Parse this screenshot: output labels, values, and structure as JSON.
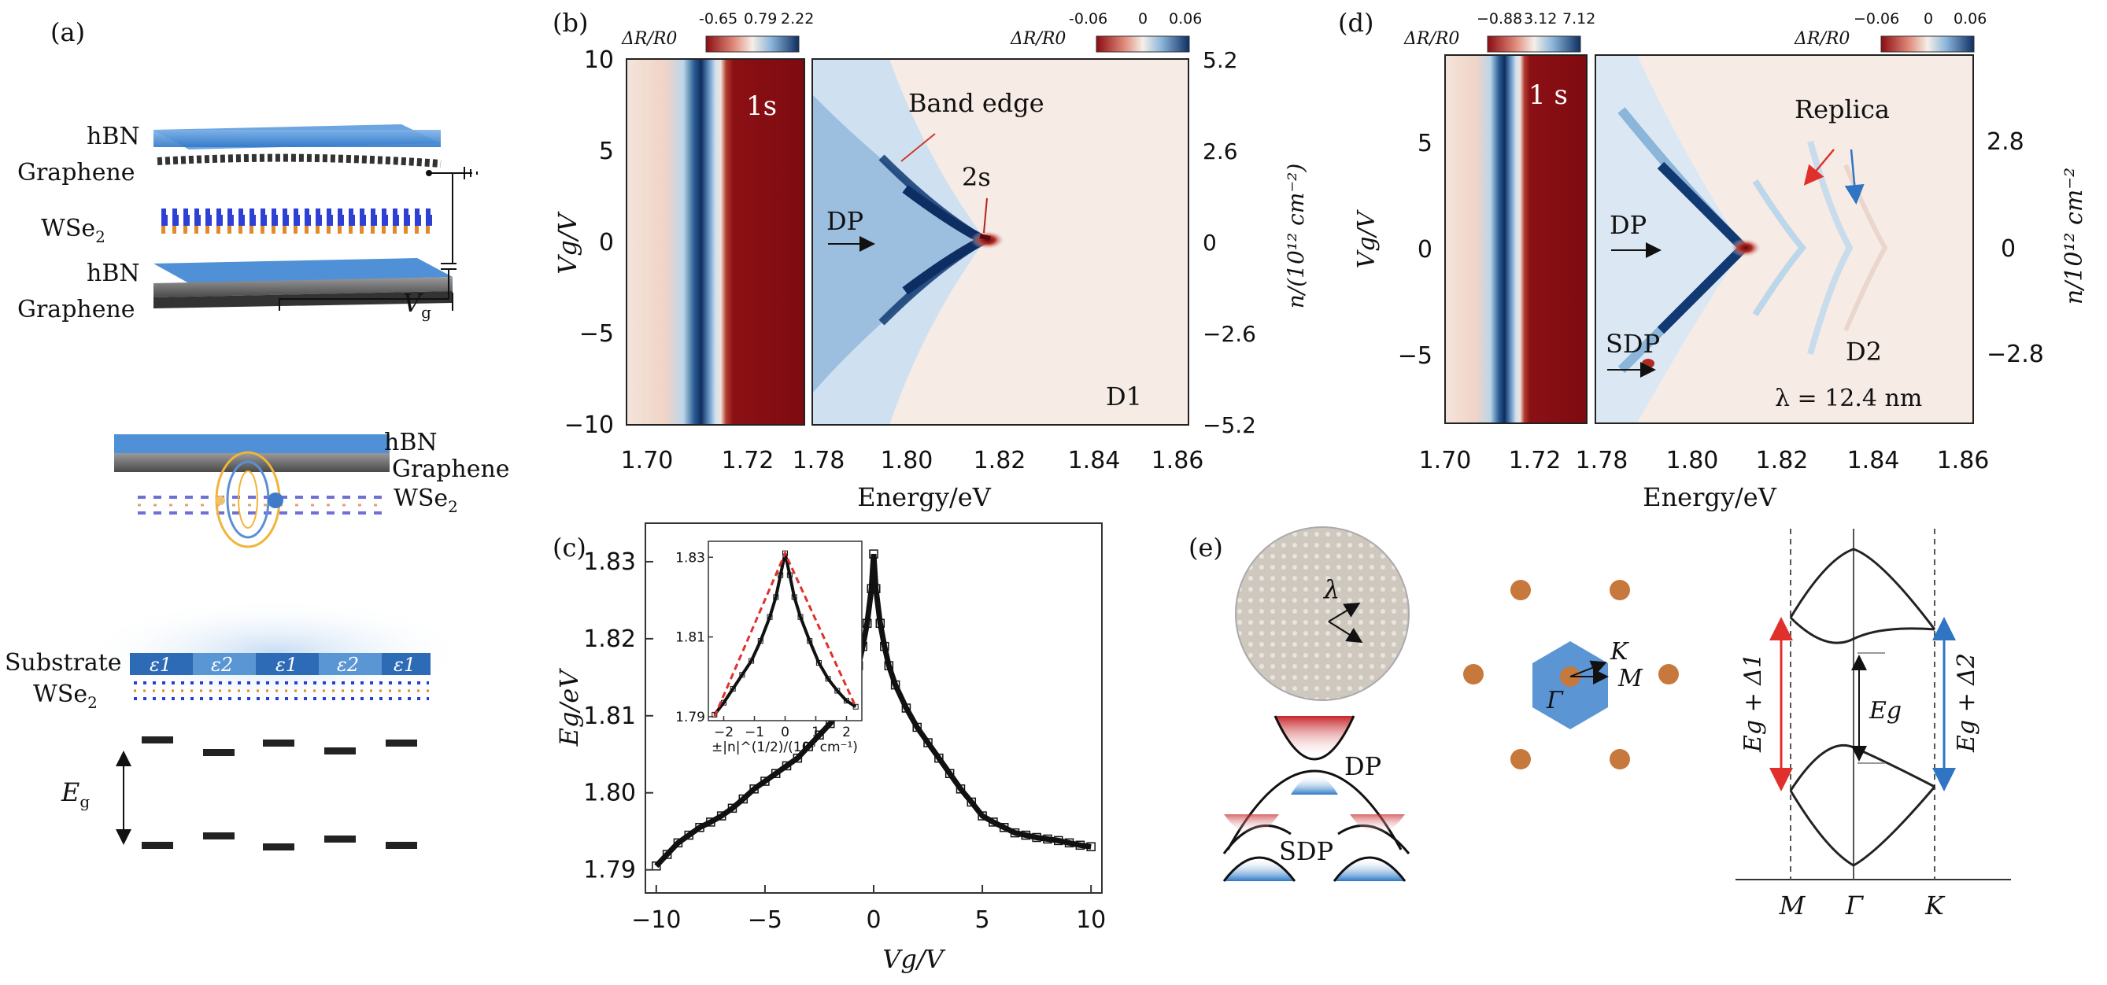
{
  "panel_labels": {
    "a": "(a)",
    "b": "(b)",
    "c": "(c)",
    "d": "(d)",
    "e": "(e)"
  },
  "panel_a": {
    "top": {
      "hbn": "hBN",
      "graphene": "Graphene",
      "wse2": "WSe",
      "hbn2": "hBN",
      "graphene2": "Graphene",
      "vg": "V",
      "vg_sub": "g"
    },
    "mid": {
      "hbn": "hBN",
      "graphene": "Graphene",
      "wse2": "WSe"
    },
    "bottom": {
      "substrate": "Substrate",
      "wse2": "WSe",
      "eps": [
        "ε1",
        "ε2",
        "ε1",
        "ε2",
        "ε1"
      ],
      "eg": "E",
      "eg_sub": "g"
    }
  },
  "panel_b": {
    "cbar_left": {
      "label": "ΔR/R0",
      "ticks": [
        "-0.65",
        "0.79",
        "2.22"
      ]
    },
    "cbar_right": {
      "label": "ΔR/R0",
      "ticks": [
        "-0.06",
        "0",
        "0.06"
      ]
    },
    "annotations": {
      "one_s": "1s",
      "band_edge": "Band edge",
      "two_s": "2s",
      "dp": "DP",
      "device": "D1"
    },
    "y_label": "Vg/V",
    "right_label": "n/(10¹² cm⁻²)",
    "y_ticks": [
      "10",
      "5",
      "0",
      "−5",
      "−10"
    ],
    "right_ticks": [
      "5.2",
      "2.6",
      "0",
      "−2.6",
      "−5.2"
    ],
    "x_ticks": [
      "1.70",
      "1.72",
      "1.78",
      "1.80",
      "1.82",
      "1.84",
      "1.86"
    ],
    "x_label": "Energy/eV"
  },
  "panel_c": {
    "x_label": "Vg/V",
    "y_label": "Eg/eV",
    "inset": {
      "y_ticks": [
        "1.83",
        "1.81",
        "1.79"
      ],
      "x_ticks": [
        "−2",
        "−1",
        "0",
        "1",
        "2"
      ],
      "x_label": "±|n|^(1/2)/(10⁶ cm⁻¹)"
    }
  },
  "panel_d": {
    "cbar_left": {
      "label": "ΔR/R0",
      "ticks": [
        "−0.88",
        "3.12",
        "7.12"
      ]
    },
    "cbar_right": {
      "label": "ΔR/R0",
      "ticks": [
        "−0.06",
        "0",
        "0.06"
      ]
    },
    "annotations": {
      "one_s": "1 s",
      "replica": "Replica",
      "dp": "DP",
      "sdp": "SDP",
      "device": "D2",
      "lambda": "λ = 12.4 nm"
    },
    "y_label": "Vg/V",
    "right_label": "n/10¹² cm⁻²",
    "y_ticks": [
      "5",
      "0",
      "−5"
    ],
    "right_ticks": [
      "2.8",
      "0",
      "−2.8"
    ],
    "x_ticks": [
      "1.70",
      "1.72",
      "1.78",
      "1.80",
      "1.82",
      "1.84",
      "1.86"
    ],
    "x_label": "Energy/eV"
  },
  "panel_e": {
    "moire_label": "λ",
    "dp": "DP",
    "sdp": "SDP",
    "bz": {
      "k": "K",
      "m": "M",
      "gamma": "Γ"
    },
    "bands": {
      "left": "Eg + Δ1",
      "right": "Eg + Δ2",
      "eg": "Eg",
      "x_ticks": [
        "M",
        "Γ",
        "K"
      ]
    }
  },
  "chart_data": [
    {
      "type": "scatter",
      "title": "",
      "xlabel": "Vg/V",
      "ylabel": "Eg/eV",
      "xlim": [
        -10.5,
        10.5
      ],
      "ylim": [
        1.787,
        1.835
      ],
      "x_ticks": [
        -10,
        -5,
        0,
        5,
        10
      ],
      "y_ticks": [
        1.79,
        1.8,
        1.81,
        1.82,
        1.83
      ],
      "series": [
        {
          "x": [
            -10,
            -9.5,
            -9,
            -8.5,
            -8,
            -7.5,
            -7,
            -6.5,
            -6,
            -5.5,
            -5,
            -4.5,
            -4,
            -3.5,
            -3,
            -2.5,
            -2,
            -1.5,
            -1,
            -0.7,
            -0.5,
            -0.3,
            -0.1,
            0,
            0.1,
            0.3,
            0.5,
            0.7,
            1,
            1.5,
            2,
            2.5,
            3,
            3.5,
            4,
            4.5,
            5,
            5.5,
            6,
            6.5,
            7,
            7.5,
            8,
            8.5,
            9,
            9.5,
            10
          ],
          "y": [
            1.7905,
            1.792,
            1.7935,
            1.7945,
            1.7955,
            1.7962,
            1.797,
            1.798,
            1.7992,
            1.8005,
            1.8015,
            1.8025,
            1.8035,
            1.8045,
            1.806,
            1.8075,
            1.809,
            1.811,
            1.814,
            1.8165,
            1.819,
            1.822,
            1.8265,
            1.831,
            1.8265,
            1.822,
            1.819,
            1.8165,
            1.814,
            1.811,
            1.8085,
            1.8065,
            1.8045,
            1.8025,
            1.8005,
            1.7988,
            1.797,
            1.7962,
            1.7955,
            1.7948,
            1.7945,
            1.7942,
            1.794,
            1.7938,
            1.7935,
            1.7932,
            1.793
          ]
        }
      ]
    },
    {
      "type": "scatter",
      "title": "",
      "xlabel": "±|n|^(1/2)/(10⁶ cm⁻¹)",
      "ylabel": "",
      "xlim": [
        -2.5,
        2.5
      ],
      "ylim": [
        1.789,
        1.834
      ],
      "x_ticks": [
        -2,
        -1,
        0,
        1,
        2
      ],
      "y_ticks": [
        1.79,
        1.81,
        1.83
      ],
      "series": [
        {
          "x": [
            -2.3,
            -2.0,
            -1.7,
            -1.4,
            -1.1,
            -0.8,
            -0.5,
            -0.3,
            -0.15,
            0,
            0.15,
            0.3,
            0.5,
            0.8,
            1.1,
            1.4,
            1.7,
            2.0,
            2.3
          ],
          "y": [
            1.7905,
            1.7935,
            1.797,
            1.8005,
            1.804,
            1.809,
            1.815,
            1.82,
            1.8255,
            1.831,
            1.8255,
            1.82,
            1.815,
            1.809,
            1.8035,
            1.7995,
            1.7965,
            1.794,
            1.7925
          ]
        },
        {
          "name": "",
          "x": [
            -2.3,
            0,
            2.3
          ],
          "y": [
            1.79,
            1.831,
            1.7925
          ]
        }
      ]
    }
  ]
}
